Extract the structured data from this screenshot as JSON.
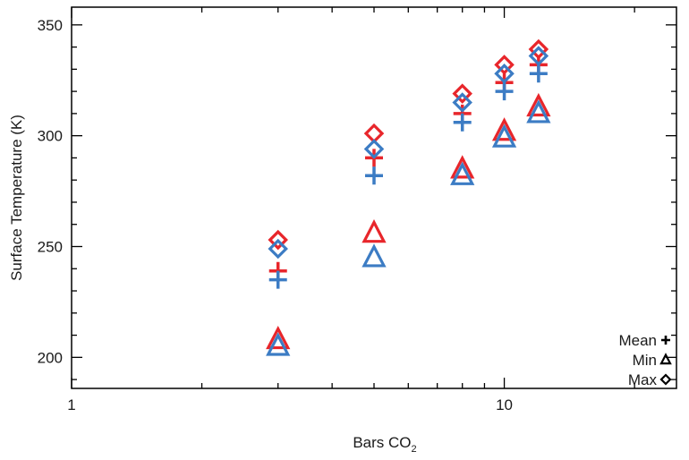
{
  "chart_data": {
    "type": "scatter",
    "title": "",
    "xlabel_main": "Bars CO",
    "xlabel_sub": "2",
    "ylabel": "Surface Temperature (K)",
    "x_scale": "log",
    "xlim": [
      1,
      25
    ],
    "ylim": [
      186,
      358
    ],
    "x_tick_labels": [
      "1",
      "10"
    ],
    "x_tick_values": [
      1,
      10
    ],
    "y_tick_labels": [
      "200",
      "250",
      "300",
      "350"
    ],
    "y_tick_values": [
      200,
      250,
      300,
      350
    ],
    "grid": false,
    "legend_position": "bottom-right",
    "legend": [
      {
        "label": "Mean",
        "marker": "plus"
      },
      {
        "label": "Min",
        "marker": "triangle"
      },
      {
        "label": "Max",
        "marker": "diamond"
      }
    ],
    "series": [
      {
        "color": "#e8262b",
        "x": [
          3,
          5,
          8,
          10,
          12
        ],
        "mean": [
          239,
          290,
          310,
          324,
          332
        ],
        "min": [
          208,
          256,
          285,
          302,
          313
        ],
        "max": [
          253,
          301,
          319,
          332,
          339
        ]
      },
      {
        "color": "#3c7cc4",
        "x": [
          3,
          5,
          8,
          10,
          12
        ],
        "mean": [
          235,
          282,
          306,
          320,
          328
        ],
        "min": [
          205,
          245,
          282,
          299,
          310
        ],
        "max": [
          249,
          294,
          315,
          328,
          336
        ]
      }
    ]
  }
}
